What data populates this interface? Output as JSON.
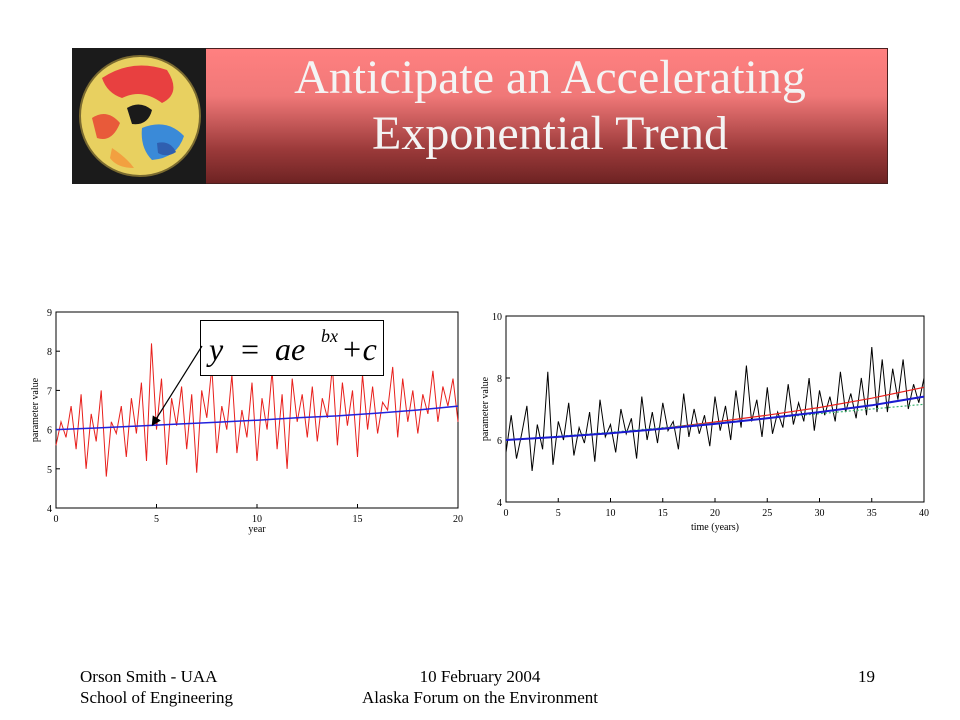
{
  "slide": {
    "title_line1": "Anticipate an Accelerating",
    "title_line2": "Exponential Trend",
    "equation": {
      "y": "y",
      "eq": "=",
      "a": "ae",
      "exp": "bx",
      "tail": "+c"
    },
    "footer_left_line1": "Orson Smith - UAA",
    "footer_left_line2": "School of Engineering",
    "footer_center_line1": "10 February 2004",
    "footer_center_line2": "Alaska Forum on the Environment",
    "page_number": "19"
  },
  "chart_data": [
    {
      "type": "line",
      "xlabel": "year",
      "ylabel": "parameter value",
      "xlim": [
        0,
        20
      ],
      "ylim": [
        4,
        9
      ],
      "xticks": [
        0,
        5,
        10,
        15,
        20
      ],
      "yticks": [
        4,
        5,
        6,
        7,
        8,
        9
      ],
      "series": [
        {
          "color": "#e8201c",
          "x": [
            0,
            0.25,
            0.5,
            0.75,
            1,
            1.25,
            1.5,
            1.75,
            2,
            2.25,
            2.5,
            2.75,
            3,
            3.25,
            3.5,
            3.75,
            4,
            4.25,
            4.5,
            4.75,
            5,
            5.25,
            5.5,
            5.75,
            6,
            6.25,
            6.5,
            6.75,
            7,
            7.25,
            7.5,
            7.75,
            8,
            8.25,
            8.5,
            8.75,
            9,
            9.25,
            9.5,
            9.75,
            10,
            10.25,
            10.5,
            10.75,
            11,
            11.25,
            11.5,
            11.75,
            12,
            12.25,
            12.5,
            12.75,
            13,
            13.25,
            13.5,
            13.75,
            14,
            14.25,
            14.5,
            14.75,
            15,
            15.25,
            15.5,
            15.75,
            16,
            16.25,
            16.5,
            16.75,
            17,
            17.25,
            17.5,
            17.75,
            18,
            18.25,
            18.5,
            18.75,
            19,
            19.25,
            19.5,
            19.75,
            20
          ],
          "y": [
            5.6,
            6.2,
            5.8,
            6.6,
            5.5,
            6.9,
            5.0,
            6.4,
            5.7,
            7.0,
            4.8,
            6.2,
            5.9,
            6.6,
            5.3,
            6.8,
            5.9,
            7.2,
            5.2,
            8.2,
            6.0,
            7.3,
            5.1,
            6.8,
            6.1,
            7.1,
            5.5,
            6.9,
            4.9,
            7.0,
            6.3,
            7.6,
            5.4,
            6.6,
            6.0,
            7.4,
            5.4,
            6.5,
            5.8,
            7.2,
            5.2,
            6.8,
            6.0,
            7.5,
            5.5,
            6.9,
            5.0,
            7.3,
            6.2,
            6.9,
            5.8,
            7.1,
            5.7,
            6.8,
            6.3,
            7.6,
            5.6,
            7.2,
            6.1,
            7.0,
            5.3,
            7.4,
            6.0,
            7.1,
            5.9,
            6.7,
            6.5,
            7.6,
            5.8,
            7.3,
            6.2,
            7.0,
            5.9,
            6.9,
            6.4,
            7.5,
            6.2,
            7.1,
            6.6,
            7.3,
            6.2
          ]
        },
        {
          "color": "#2222dd",
          "x": [
            0,
            2,
            4,
            6,
            8,
            10,
            12,
            14,
            16,
            18,
            20
          ],
          "y": [
            6.0,
            6.04,
            6.09,
            6.14,
            6.19,
            6.24,
            6.3,
            6.35,
            6.42,
            6.5,
            6.6
          ]
        }
      ]
    },
    {
      "type": "line",
      "xlabel": "time (years)",
      "ylabel": "parameter value",
      "xlim": [
        0,
        40
      ],
      "ylim": [
        4,
        10
      ],
      "xticks": [
        0,
        5,
        10,
        15,
        20,
        25,
        30,
        35,
        40
      ],
      "yticks": [
        4,
        6,
        8,
        10
      ],
      "series": [
        {
          "color": "#000000",
          "x": [
            0,
            0.5,
            1,
            1.5,
            2,
            2.5,
            3,
            3.5,
            4,
            4.5,
            5,
            5.5,
            6,
            6.5,
            7,
            7.5,
            8,
            8.5,
            9,
            9.5,
            10,
            10.5,
            11,
            11.5,
            12,
            12.5,
            13,
            13.5,
            14,
            14.5,
            15,
            15.5,
            16,
            16.5,
            17,
            17.5,
            18,
            18.5,
            19,
            19.5,
            20,
            20.5,
            21,
            21.5,
            22,
            22.5,
            23,
            23.5,
            24,
            24.5,
            25,
            25.5,
            26,
            26.5,
            27,
            27.5,
            28,
            28.5,
            29,
            29.5,
            30,
            30.5,
            31,
            31.5,
            32,
            32.5,
            33,
            33.5,
            34,
            34.5,
            35,
            35.5,
            36,
            36.5,
            37,
            37.5,
            38,
            38.5,
            39,
            39.5,
            40
          ],
          "y": [
            5.6,
            6.8,
            5.4,
            6.2,
            7.1,
            5.0,
            6.5,
            5.7,
            8.2,
            5.2,
            6.6,
            6.0,
            7.2,
            5.5,
            6.4,
            5.9,
            6.9,
            5.3,
            7.3,
            6.1,
            6.5,
            5.6,
            7.0,
            6.2,
            6.7,
            5.4,
            7.4,
            6.0,
            6.9,
            5.9,
            7.2,
            6.3,
            6.6,
            5.7,
            7.5,
            6.1,
            7.0,
            6.2,
            6.8,
            5.8,
            7.4,
            6.3,
            7.1,
            6.0,
            7.6,
            6.4,
            8.4,
            6.6,
            7.3,
            6.1,
            7.7,
            6.2,
            6.9,
            6.4,
            7.8,
            6.5,
            7.2,
            6.6,
            8.0,
            6.3,
            7.6,
            6.8,
            7.4,
            6.6,
            8.2,
            6.9,
            7.5,
            6.7,
            8.0,
            6.8,
            9.0,
            6.9,
            8.6,
            6.9,
            8.3,
            7.3,
            8.6,
            7.0,
            7.8,
            7.2,
            8.0
          ]
        },
        {
          "color": "#e8201c",
          "x": [
            0,
            5,
            10,
            15,
            20,
            25,
            30,
            35,
            40
          ],
          "y": [
            6.0,
            6.1,
            6.22,
            6.38,
            6.58,
            6.8,
            7.05,
            7.35,
            7.7
          ]
        },
        {
          "color": "#3cb371",
          "x": [
            0,
            5,
            10,
            15,
            20,
            25,
            30,
            35,
            40
          ],
          "y": [
            6.0,
            6.12,
            6.25,
            6.4,
            6.55,
            6.7,
            6.85,
            7.0,
            7.15
          ]
        },
        {
          "color": "#1a1ad0",
          "x": [
            0,
            5,
            10,
            15,
            20,
            25,
            30,
            35,
            40
          ],
          "y": [
            6.0,
            6.1,
            6.22,
            6.36,
            6.52,
            6.7,
            6.9,
            7.12,
            7.4
          ]
        }
      ]
    }
  ]
}
